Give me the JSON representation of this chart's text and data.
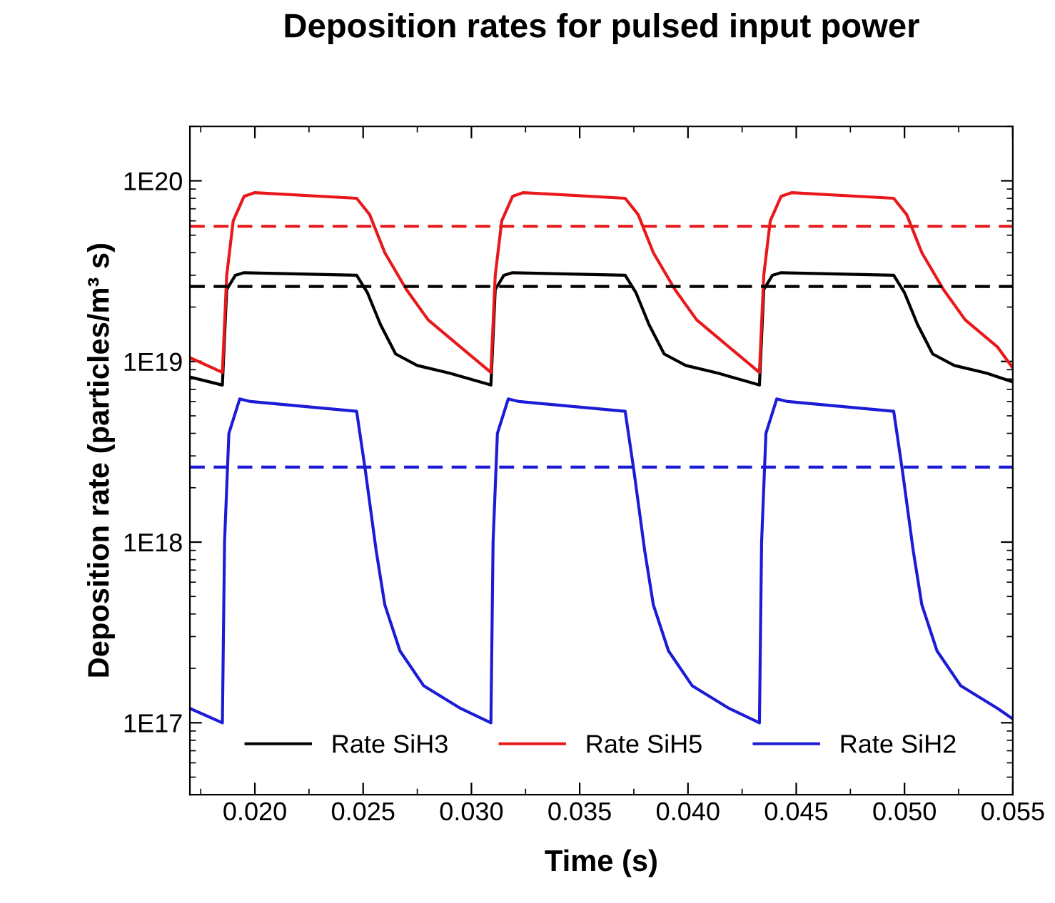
{
  "chart_data": {
    "type": "line",
    "title": "Deposition rates for pulsed input power",
    "xlabel": "Time (s)",
    "ylabel": "Deposition rate (particles/m³ s)",
    "log": "y",
    "grid": false,
    "legend": "bottom",
    "marker": "none",
    "line_style": "solid",
    "xlim": [
      0.017,
      0.055
    ],
    "xticks": [
      {
        "value": 0.02,
        "label": "0.020"
      },
      {
        "value": 0.025,
        "label": "0.025"
      },
      {
        "value": 0.03,
        "label": "0.030"
      },
      {
        "value": 0.035,
        "label": "0.035"
      },
      {
        "value": 0.04,
        "label": "0.040"
      },
      {
        "value": 0.045,
        "label": "0.045"
      },
      {
        "value": 0.05,
        "label": "0.050"
      },
      {
        "value": 0.055,
        "label": "0.055"
      }
    ],
    "ylim": [
      4e+16,
      2e+20
    ],
    "yticks": [
      {
        "value": 1e+17,
        "label": "1E17"
      },
      {
        "value": 1e+18,
        "label": "1E18"
      },
      {
        "value": 1e+19,
        "label": "1E19"
      },
      {
        "value": 1e+20,
        "label": "1E20"
      }
    ],
    "series": [
      {
        "name": "Rate SiH3",
        "color": "#000000",
        "x": [
          0.017,
          0.0185,
          0.0187,
          0.0191,
          0.0195,
          0.0247,
          0.0252,
          0.0258,
          0.0265,
          0.0275,
          0.029,
          0.0309,
          0.0311,
          0.0315,
          0.0319,
          0.0371,
          0.0376,
          0.0382,
          0.0389,
          0.0399,
          0.0414,
          0.0433,
          0.0435,
          0.0439,
          0.0443,
          0.0495,
          0.05,
          0.0506,
          0.0513,
          0.0523,
          0.0538,
          0.055
        ],
        "values": [
          8.2e+18,
          7.4e+18,
          2.5e+19,
          3e+19,
          3.1e+19,
          3e+19,
          2.4e+19,
          1.6e+19,
          1.1e+19,
          9.5e+18,
          8.6e+18,
          7.4e+18,
          2.5e+19,
          3e+19,
          3.1e+19,
          3e+19,
          2.4e+19,
          1.6e+19,
          1.1e+19,
          9.5e+18,
          8.6e+18,
          7.4e+18,
          2.5e+19,
          3e+19,
          3.1e+19,
          3e+19,
          2.4e+19,
          1.6e+19,
          1.1e+19,
          9.5e+18,
          8.6e+18,
          7.7e+18
        ]
      },
      {
        "name": "Rate SiH5",
        "color": "#e8181b",
        "x": [
          0.017,
          0.0185,
          0.0187,
          0.019,
          0.0195,
          0.02,
          0.0247,
          0.0253,
          0.026,
          0.027,
          0.028,
          0.0295,
          0.0309,
          0.0311,
          0.0314,
          0.0319,
          0.0324,
          0.0371,
          0.0377,
          0.0384,
          0.0394,
          0.0404,
          0.0419,
          0.0433,
          0.0435,
          0.0438,
          0.0443,
          0.0448,
          0.0495,
          0.0501,
          0.0508,
          0.0518,
          0.0528,
          0.0543,
          0.055
        ],
        "values": [
          1.05e+19,
          8.7e+18,
          3e+19,
          6e+19,
          8.2e+19,
          8.6e+19,
          8e+19,
          6.5e+19,
          4e+19,
          2.5e+19,
          1.7e+19,
          1.2e+19,
          8.7e+18,
          3e+19,
          6e+19,
          8.2e+19,
          8.6e+19,
          8e+19,
          6.5e+19,
          4e+19,
          2.5e+19,
          1.7e+19,
          1.2e+19,
          8.7e+18,
          3e+19,
          6e+19,
          8.2e+19,
          8.6e+19,
          8e+19,
          6.5e+19,
          4e+19,
          2.5e+19,
          1.7e+19,
          1.2e+19,
          9.2e+18
        ]
      },
      {
        "name": "Rate SiH2",
        "color": "#1c1cd6",
        "x": [
          0.017,
          0.0185,
          0.0186,
          0.0188,
          0.0193,
          0.0198,
          0.0247,
          0.0251,
          0.0256,
          0.026,
          0.0267,
          0.0278,
          0.0295,
          0.0309,
          0.031,
          0.0312,
          0.0317,
          0.0322,
          0.0371,
          0.0375,
          0.038,
          0.0384,
          0.0391,
          0.0402,
          0.0419,
          0.0433,
          0.0434,
          0.0436,
          0.0441,
          0.0446,
          0.0495,
          0.0499,
          0.0504,
          0.0508,
          0.0515,
          0.0526,
          0.0543,
          0.055
        ],
        "values": [
          1.2e+17,
          1e+17,
          1e+18,
          4e+18,
          6.2e+18,
          6e+18,
          5.3e+18,
          2.5e+18,
          9e+17,
          4.5e+17,
          2.5e+17,
          1.6e+17,
          1.2e+17,
          1e+17,
          1e+18,
          4e+18,
          6.2e+18,
          6e+18,
          5.3e+18,
          2.5e+18,
          9e+17,
          4.5e+17,
          2.5e+17,
          1.6e+17,
          1.2e+17,
          1e+17,
          1e+18,
          4e+18,
          6.2e+18,
          6e+18,
          5.3e+18,
          2.5e+18,
          9e+17,
          4.5e+17,
          2.5e+17,
          1.6e+17,
          1.2e+17,
          1.05e+17
        ]
      }
    ],
    "ref_lines": [
      {
        "axis": "y",
        "value": 5.6e+19,
        "color": "#e8181b",
        "line_style": "dashed"
      },
      {
        "axis": "y",
        "value": 2.6e+19,
        "color": "#000000",
        "line_style": "dashed"
      },
      {
        "axis": "y",
        "value": 2.6e+18,
        "color": "#1c1cd6",
        "line_style": "dashed"
      }
    ]
  }
}
